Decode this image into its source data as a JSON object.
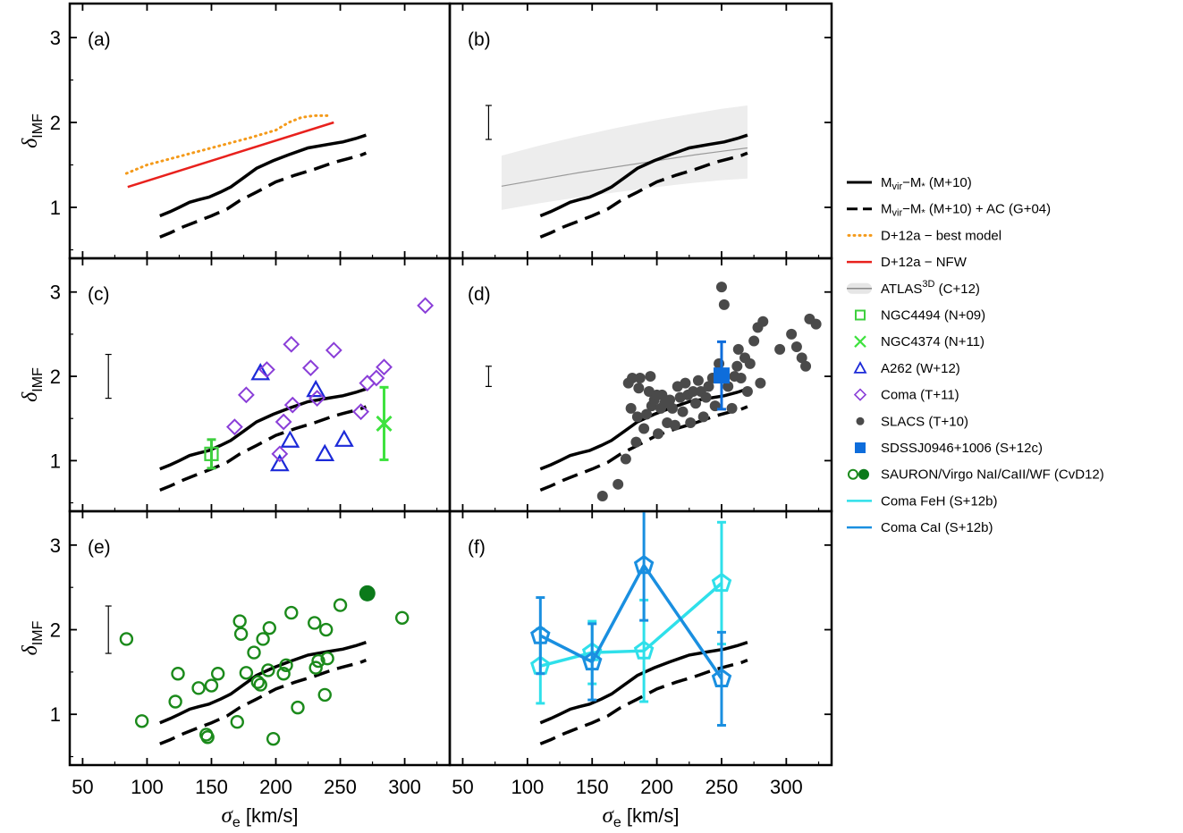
{
  "chart_data": {
    "type": "scatter",
    "xlim": [
      40,
      335
    ],
    "ylim": [
      0.4,
      3.4
    ],
    "xticks": [
      50,
      100,
      150,
      200,
      250,
      300
    ],
    "yticks": [
      1,
      2,
      3
    ],
    "xlabel": "σ",
    "xlabel_sub": "e",
    "xlabel_unit": "[km/s]",
    "ylabel": "δ",
    "ylabel_sub": "IMF",
    "grid": false,
    "legend_position": "right",
    "curves": {
      "mvir_solid": {
        "x": [
          110,
          118,
          125,
          133,
          140,
          148,
          157,
          165,
          175,
          185,
          198,
          210,
          225,
          240,
          252,
          262,
          270
        ],
        "y": [
          0.9,
          0.95,
          1.0,
          1.06,
          1.09,
          1.12,
          1.18,
          1.24,
          1.35,
          1.46,
          1.55,
          1.62,
          1.7,
          1.74,
          1.77,
          1.81,
          1.85
        ]
      },
      "mvir_ac_dashed": {
        "x": [
          110,
          118,
          128,
          138,
          150,
          162,
          172,
          185,
          200,
          215,
          230,
          245,
          255,
          265,
          270
        ],
        "y": [
          0.65,
          0.7,
          0.77,
          0.83,
          0.9,
          0.98,
          1.08,
          1.18,
          1.3,
          1.38,
          1.45,
          1.53,
          1.57,
          1.61,
          1.64
        ]
      }
    },
    "panels": [
      {
        "label": "(a)",
        "series": [
          {
            "name": "D+12a - best model",
            "kind": "line",
            "style": "dotted",
            "color": "#f49a1a",
            "x": [
              84,
              100,
              120,
              140,
              160,
              180,
              200,
              210,
              220,
              230,
              240
            ],
            "y": [
              1.4,
              1.5,
              1.58,
              1.66,
              1.74,
              1.82,
              1.91,
              2.0,
              2.06,
              2.08,
              2.08
            ]
          },
          {
            "name": "D+12a - NFW",
            "kind": "line",
            "style": "solid",
            "color": "#e8211d",
            "x": [
              85,
              245
            ],
            "y": [
              1.24,
              2.0
            ]
          }
        ]
      },
      {
        "label": "(b)",
        "errorbar": {
          "x": 70,
          "y": 2.0,
          "err": 0.2
        },
        "series": [
          {
            "name": "ATLAS3D (C+12)",
            "kind": "band",
            "color": "#9a9a9a",
            "fill": "#ededed",
            "x": [
              80,
              110,
              140,
              170,
              200,
              230,
              250,
              270
            ],
            "y": [
              1.25,
              1.33,
              1.41,
              1.48,
              1.55,
              1.62,
              1.66,
              1.7
            ],
            "lower": [
              0.97,
              1.05,
              1.12,
              1.18,
              1.24,
              1.29,
              1.32,
              1.34
            ],
            "upper": [
              1.61,
              1.73,
              1.84,
              1.94,
              2.03,
              2.11,
              2.16,
              2.2
            ]
          }
        ]
      },
      {
        "label": "(c)",
        "errorbar": {
          "x": 70,
          "y": 2.0,
          "err": 0.26
        },
        "series": [
          {
            "name": "NGC4494 (N+09)",
            "kind": "points",
            "marker": "square-open",
            "color": "#3ecf3e",
            "x": [
              150
            ],
            "y": [
              1.08
            ],
            "yerr": [
              0.17
            ]
          },
          {
            "name": "NGC4374 (N+11)",
            "kind": "points",
            "marker": "x",
            "color": "#3ee23e",
            "x": [
              284
            ],
            "y": [
              1.44
            ],
            "yerr": [
              0.43
            ]
          },
          {
            "name": "A262 (W+12)",
            "kind": "points",
            "marker": "triangle-open",
            "color": "#1c2ad8",
            "x": [
              188,
              203,
              211,
              231,
              238,
              253
            ],
            "y": [
              2.04,
              0.96,
              1.24,
              1.84,
              1.08,
              1.25
            ]
          },
          {
            "name": "Coma (T+11)",
            "kind": "points",
            "marker": "diamond-open",
            "color": "#8a3ed8",
            "x": [
              168,
              177,
              193,
              203,
              206,
              212,
              213,
              227,
              232,
              245,
              266,
              271,
              278,
              284,
              316
            ],
            "y": [
              1.4,
              1.78,
              2.08,
              1.08,
              1.46,
              2.38,
              1.66,
              2.1,
              1.74,
              2.31,
              1.58,
              1.92,
              1.98,
              2.11,
              2.84
            ]
          }
        ]
      },
      {
        "label": "(d)",
        "errorbar": {
          "x": 70,
          "y": 2.0,
          "err": 0.12
        },
        "series": [
          {
            "name": "SLACS (T+10)",
            "kind": "points",
            "marker": "circle-filled",
            "color": "#4a4a4a",
            "x": [
              158,
              170,
              176,
              178,
              180,
              181,
              184,
              185,
              186,
              187,
              190,
              192,
              194,
              195,
              196,
              198,
              200,
              201,
              203,
              204,
              206,
              208,
              210,
              212,
              214,
              216,
              218,
              220,
              222,
              224,
              226,
              228,
              230,
              232,
              234,
              236,
              238,
              240,
              243,
              245,
              248,
              250,
              252,
              255,
              258,
              260,
              262,
              263,
              265,
              268,
              270,
              272,
              275,
              278,
              280,
              282,
              295,
              304,
              308,
              312,
              315,
              318,
              323
            ],
            "y": [
              0.58,
              0.72,
              1.02,
              1.92,
              1.62,
              1.98,
              1.22,
              1.52,
              1.86,
              1.98,
              1.38,
              1.55,
              1.82,
              2.0,
              1.65,
              1.72,
              1.78,
              1.32,
              1.62,
              1.78,
              1.68,
              1.45,
              1.72,
              1.62,
              1.42,
              1.88,
              1.75,
              1.58,
              1.92,
              1.78,
              1.45,
              1.82,
              1.68,
              1.95,
              1.82,
              1.52,
              1.75,
              1.88,
              1.98,
              1.65,
              2.15,
              3.06,
              2.85,
              1.88,
              1.62,
              2.0,
              2.12,
              2.32,
              1.98,
              2.22,
              1.82,
              2.15,
              2.42,
              2.58,
              1.92,
              2.65,
              2.32,
              2.5,
              2.35,
              2.22,
              2.12,
              2.68,
              2.62
            ]
          },
          {
            "name": "SDSSJ0946+1006 (S+12c)",
            "kind": "points",
            "marker": "square-filled",
            "color": "#0e6ddb",
            "x": [
              250
            ],
            "y": [
              2.01
            ],
            "yerr": [
              0.4
            ]
          }
        ]
      },
      {
        "label": "(e)",
        "errorbar": {
          "x": 70,
          "y": 2.0,
          "err": 0.28
        },
        "series": [
          {
            "name": "SAURON/Virgo NaI/CaII/WF (CvD12)",
            "kind": "points",
            "marker": "circle-open",
            "color": "#1b8a1b",
            "x": [
              84,
              96,
              122,
              124,
              140,
              146,
              147,
              150,
              155,
              170,
              172,
              173,
              177,
              183,
              186,
              188,
              190,
              194,
              195,
              198,
              206,
              208,
              212,
              217,
              230,
              231,
              233,
              238,
              239,
              240,
              250,
              271,
              298
            ],
            "y": [
              1.89,
              0.92,
              1.15,
              1.48,
              1.31,
              0.76,
              0.73,
              1.34,
              1.48,
              0.91,
              2.1,
              1.95,
              1.49,
              1.73,
              1.38,
              1.35,
              1.89,
              1.52,
              2.02,
              0.71,
              1.48,
              1.58,
              2.2,
              1.08,
              2.08,
              1.55,
              1.63,
              1.23,
              2.0,
              1.66,
              2.29,
              2.43,
              2.14
            ]
          },
          {
            "name": "SAURON/Virgo filled",
            "kind": "points",
            "marker": "circle-filled",
            "color": "#0b7a1a",
            "x": [
              271
            ],
            "y": [
              2.43
            ]
          }
        ]
      },
      {
        "label": "(f)",
        "series": [
          {
            "name": "Coma FeH (S+12b)",
            "kind": "line-points",
            "marker": "pentagon-open",
            "color": "#2fe0ea",
            "x": [
              110,
              150,
              190,
              250
            ],
            "y": [
              1.57,
              1.73,
              1.75,
              2.55
            ],
            "yerr": [
              0.44,
              0.37,
              0.6,
              0.72
            ]
          },
          {
            "name": "Coma CaI (S+12b)",
            "kind": "line-points",
            "marker": "pentagon-open",
            "color": "#1a8fe0",
            "x": [
              110,
              150,
              190,
              250
            ],
            "y": [
              1.93,
              1.62,
              2.76,
              1.42
            ],
            "yerr": [
              0.45,
              0.45,
              0.65,
              0.55
            ]
          }
        ]
      }
    ],
    "legend": [
      {
        "key": "mvir",
        "text": "M",
        "sub1": "vir",
        "mid": "−M",
        "sub2": "*",
        "tail": " (M+10)"
      },
      {
        "key": "mvir_ac",
        "text": "M",
        "sub1": "vir",
        "mid": "−M",
        "sub2": "*",
        "tail": " (M+10) + AC (G+04)"
      },
      {
        "key": "d12_best",
        "text": "D+12a − best model"
      },
      {
        "key": "d12_nfw",
        "text": "D+12a − NFW"
      },
      {
        "key": "atlas",
        "text": "ATLAS",
        "sup": "3D",
        "tail": " (C+12)"
      },
      {
        "key": "n09",
        "text": "NGC4494 (N+09)"
      },
      {
        "key": "n11",
        "text": "NGC4374 (N+11)"
      },
      {
        "key": "a262",
        "text": "A262 (W+12)"
      },
      {
        "key": "coma_t11",
        "text": "Coma (T+11)"
      },
      {
        "key": "slacs",
        "text": "SLACS (T+10)"
      },
      {
        "key": "sdss",
        "text": "SDSSJ0946+1006 (S+12c)"
      },
      {
        "key": "sauron",
        "text": "SAURON/Virgo NaI/CaII/WF (CvD12)"
      },
      {
        "key": "feh",
        "text": "Coma FeH (S+12b)"
      },
      {
        "key": "cai",
        "text": "Coma CaI (S+12b)"
      }
    ]
  }
}
